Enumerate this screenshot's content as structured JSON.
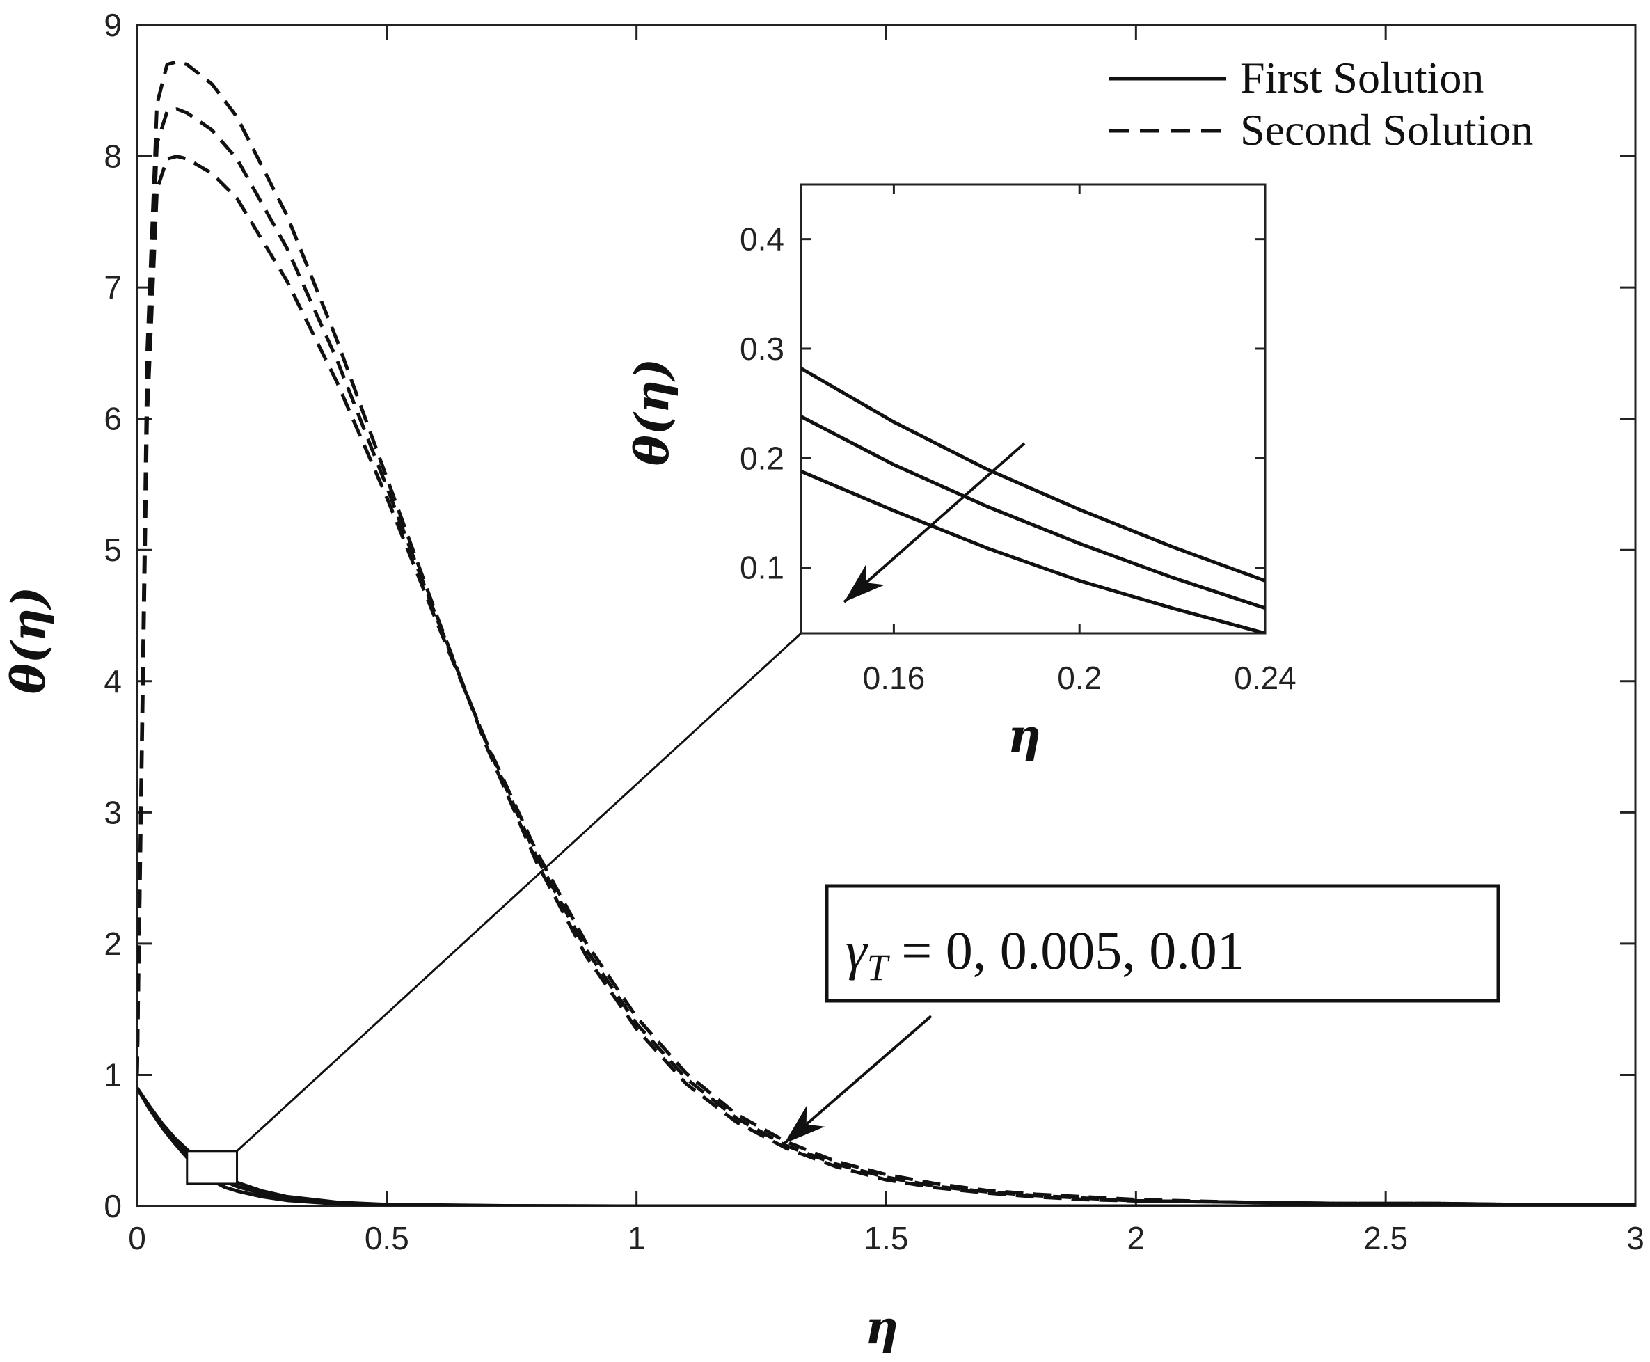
{
  "chart_data": {
    "type": "line",
    "main": {
      "xlabel": "η",
      "ylabel": "θ(η)",
      "xlim": [
        0,
        3
      ],
      "ylim": [
        0,
        9
      ],
      "x_ticks": [
        0,
        0.5,
        1,
        1.5,
        2,
        2.5,
        3
      ],
      "x_tick_labels": [
        "0",
        "0.5",
        "1",
        "1.5",
        "2",
        "2.5",
        "3"
      ],
      "y_ticks": [
        0,
        1,
        2,
        3,
        4,
        5,
        6,
        7,
        8,
        9
      ],
      "y_tick_labels": [
        "0",
        "1",
        "2",
        "3",
        "4",
        "5",
        "6",
        "7",
        "8",
        "9"
      ],
      "grid": false,
      "legend": {
        "placement": "top-right",
        "entries": [
          {
            "label": "First Solution",
            "style": "solid"
          },
          {
            "label": "Second Solution",
            "style": "dashed"
          }
        ]
      },
      "annotation": {
        "text": "γT = 0, 0.005, 0.01",
        "gamma_symbol": "γ",
        "gamma_subscript": "T",
        "values_text": " = 0, 0.005, 0.01"
      },
      "series": [
        {
          "style": "dashed",
          "x": [
            0,
            0.02,
            0.04,
            0.06,
            0.08,
            0.1,
            0.15,
            0.2,
            0.3,
            0.4,
            0.5,
            0.6,
            0.7,
            0.8,
            0.9,
            1.0,
            1.1,
            1.2,
            1.3,
            1.4,
            1.5,
            1.6,
            1.7,
            1.8,
            1.9,
            2.0,
            2.2,
            2.4,
            2.6,
            2.8,
            3.0
          ],
          "y": [
            1.0,
            6.5,
            8.4,
            8.7,
            8.72,
            8.7,
            8.55,
            8.3,
            7.55,
            6.6,
            5.55,
            4.5,
            3.5,
            2.62,
            1.9,
            1.35,
            0.93,
            0.64,
            0.44,
            0.3,
            0.2,
            0.14,
            0.1,
            0.07,
            0.05,
            0.04,
            0.03,
            0.02,
            0.02,
            0.01,
            0.01
          ]
        },
        {
          "style": "dashed",
          "x": [
            0,
            0.02,
            0.04,
            0.06,
            0.08,
            0.1,
            0.15,
            0.2,
            0.3,
            0.4,
            0.5,
            0.6,
            0.7,
            0.8,
            0.9,
            1.0,
            1.1,
            1.2,
            1.3,
            1.4,
            1.5,
            1.6,
            1.7,
            1.8,
            1.9,
            2.0,
            2.2,
            2.4,
            2.6,
            2.8,
            3.0
          ],
          "y": [
            1.0,
            6.3,
            8.1,
            8.34,
            8.36,
            8.33,
            8.2,
            7.98,
            7.3,
            6.45,
            5.48,
            4.48,
            3.52,
            2.66,
            1.95,
            1.39,
            0.97,
            0.67,
            0.46,
            0.32,
            0.22,
            0.15,
            0.11,
            0.08,
            0.06,
            0.04,
            0.03,
            0.02,
            0.02,
            0.01,
            0.01
          ]
        },
        {
          "style": "dashed",
          "x": [
            0,
            0.02,
            0.04,
            0.06,
            0.08,
            0.1,
            0.15,
            0.2,
            0.3,
            0.4,
            0.5,
            0.6,
            0.7,
            0.8,
            0.9,
            1.0,
            1.1,
            1.2,
            1.3,
            1.4,
            1.5,
            1.6,
            1.7,
            1.8,
            1.9,
            2.0,
            2.2,
            2.4,
            2.6,
            2.8,
            3.0
          ],
          "y": [
            1.0,
            6.0,
            7.75,
            7.98,
            8.0,
            7.98,
            7.87,
            7.68,
            7.05,
            6.28,
            5.4,
            4.45,
            3.53,
            2.7,
            2.0,
            1.44,
            1.01,
            0.7,
            0.49,
            0.34,
            0.24,
            0.17,
            0.12,
            0.09,
            0.07,
            0.05,
            0.03,
            0.02,
            0.02,
            0.01,
            0.01
          ]
        },
        {
          "style": "solid",
          "x": [
            0,
            0.025,
            0.05,
            0.075,
            0.1,
            0.125,
            0.15,
            0.175,
            0.2,
            0.25,
            0.3,
            0.4,
            0.5,
            0.75,
            1.0,
            1.5,
            2.0,
            2.5,
            3.0
          ],
          "y": [
            0.9,
            0.76,
            0.63,
            0.52,
            0.43,
            0.35,
            0.28,
            0.225,
            0.18,
            0.115,
            0.072,
            0.029,
            0.012,
            0.002,
            0.0,
            0.0,
            0.0,
            0.0,
            0.0
          ]
        },
        {
          "style": "solid",
          "x": [
            0,
            0.025,
            0.05,
            0.075,
            0.1,
            0.125,
            0.15,
            0.175,
            0.2,
            0.25,
            0.3,
            0.4,
            0.5,
            0.75,
            1.0,
            1.5,
            2.0,
            2.5,
            3.0
          ],
          "y": [
            0.9,
            0.75,
            0.61,
            0.5,
            0.4,
            0.32,
            0.24,
            0.19,
            0.15,
            0.095,
            0.058,
            0.023,
            0.009,
            0.001,
            0.0,
            0.0,
            0.0,
            0.0,
            0.0
          ]
        },
        {
          "style": "solid",
          "x": [
            0,
            0.025,
            0.05,
            0.075,
            0.1,
            0.125,
            0.15,
            0.175,
            0.2,
            0.25,
            0.3,
            0.4,
            0.5,
            0.75,
            1.0,
            1.5,
            2.0,
            2.5,
            3.0
          ],
          "y": [
            0.9,
            0.74,
            0.6,
            0.48,
            0.37,
            0.29,
            0.195,
            0.145,
            0.115,
            0.072,
            0.044,
            0.017,
            0.007,
            0.001,
            0.0,
            0.0,
            0.0,
            0.0,
            0.0
          ]
        }
      ],
      "zoom_box": {
        "x": [
          0.1,
          0.2
        ],
        "y": [
          0.17,
          0.42
        ]
      }
    },
    "inset": {
      "xlabel": "η",
      "ylabel": "θ(η)",
      "xlim": [
        0.14,
        0.24
      ],
      "ylim": [
        0.04,
        0.45
      ],
      "x_ticks": [
        0.16,
        0.2,
        0.24
      ],
      "x_tick_labels": [
        "0.16",
        "0.2",
        "0.24"
      ],
      "y_ticks": [
        0.1,
        0.2,
        0.3,
        0.4
      ],
      "y_tick_labels": [
        "0.1",
        "0.2",
        "0.3",
        "0.4"
      ],
      "series": [
        {
          "style": "solid",
          "x": [
            0.14,
            0.16,
            0.18,
            0.2,
            0.22,
            0.24
          ],
          "y": [
            0.282,
            0.233,
            0.19,
            0.153,
            0.119,
            0.088
          ]
        },
        {
          "style": "solid",
          "x": [
            0.14,
            0.16,
            0.18,
            0.2,
            0.22,
            0.24
          ],
          "y": [
            0.238,
            0.194,
            0.156,
            0.122,
            0.091,
            0.063
          ]
        },
        {
          "style": "solid",
          "x": [
            0.14,
            0.16,
            0.18,
            0.2,
            0.22,
            0.24
          ],
          "y": [
            0.188,
            0.152,
            0.118,
            0.088,
            0.063,
            0.04
          ]
        }
      ]
    }
  }
}
